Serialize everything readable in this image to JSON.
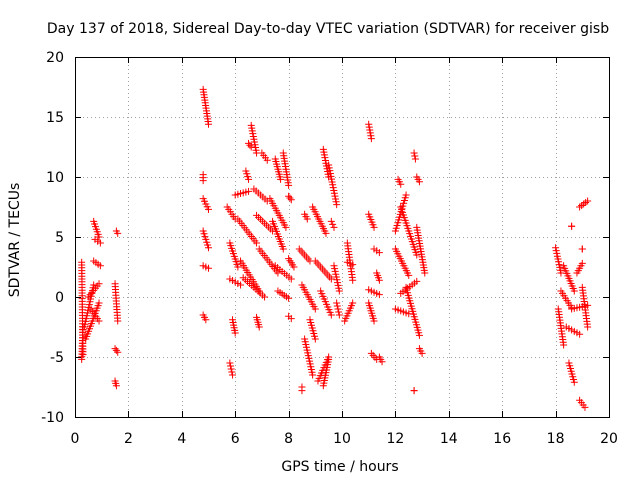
{
  "chart_data": {
    "type": "scatter",
    "title": "Day 137 of 2018, Sidereal Day-to-day VTEC variation (SDTVAR) for receiver gisb",
    "xlabel": "GPS time / hours",
    "ylabel": "SDTVAR / TECUs",
    "xlim": [
      0,
      20
    ],
    "ylim": [
      -10,
      20
    ],
    "xticks": [
      0,
      2,
      4,
      6,
      8,
      10,
      12,
      14,
      16,
      18,
      20
    ],
    "yticks": [
      -10,
      -5,
      0,
      5,
      10,
      15,
      20
    ],
    "xtick_labels": [
      "0",
      "2",
      "4",
      "6",
      "8",
      "10",
      "12",
      "14",
      "16",
      "18",
      "20"
    ],
    "ytick_labels": [
      "-10",
      "-5",
      "0",
      "5",
      "10",
      "15",
      "20"
    ],
    "grid": true,
    "marker": "+",
    "marker_color": "#ff0000",
    "series": [
      {
        "name": "SDTVAR",
        "segments": [
          [
            0.25,
            2.9,
            0.3,
            -4.8
          ],
          [
            0.25,
            -5.2,
            0.3,
            -2.5
          ],
          [
            0.35,
            -2.5,
            0.7,
            1.0
          ],
          [
            0.4,
            -3.5,
            0.9,
            -0.5
          ],
          [
            0.5,
            0.0,
            0.9,
            1.1
          ],
          [
            0.6,
            -1.0,
            0.9,
            -2.0
          ],
          [
            0.7,
            6.3,
            0.9,
            5.0
          ],
          [
            0.7,
            3.0,
            0.95,
            2.6
          ],
          [
            0.75,
            4.8,
            0.95,
            4.5
          ],
          [
            1.5,
            1.1,
            1.6,
            -2.0
          ],
          [
            1.55,
            5.5,
            1.6,
            5.3
          ],
          [
            1.5,
            -4.3,
            1.6,
            -4.6
          ],
          [
            1.5,
            -7.0,
            1.55,
            -7.4
          ],
          [
            4.8,
            17.3,
            5.0,
            14.4
          ],
          [
            4.8,
            10.2,
            4.8,
            9.7
          ],
          [
            4.8,
            8.2,
            5.0,
            7.3
          ],
          [
            4.8,
            5.5,
            5.0,
            4.1
          ],
          [
            4.8,
            2.6,
            5.0,
            2.4
          ],
          [
            4.8,
            -1.5,
            4.9,
            -1.9
          ],
          [
            5.7,
            7.5,
            6.0,
            6.5
          ],
          [
            5.8,
            4.5,
            6.1,
            2.5
          ],
          [
            5.8,
            1.5,
            6.2,
            1.0
          ],
          [
            5.8,
            -5.5,
            5.9,
            -6.5
          ],
          [
            5.9,
            -1.9,
            6.0,
            -3.0
          ],
          [
            6.0,
            8.5,
            6.5,
            8.8
          ],
          [
            6.1,
            6.5,
            6.8,
            4.5
          ],
          [
            6.2,
            3.0,
            6.9,
            0.5
          ],
          [
            6.3,
            1.6,
            7.1,
            0.0
          ],
          [
            6.4,
            10.5,
            6.5,
            9.8
          ],
          [
            6.5,
            12.8,
            6.6,
            12.5
          ],
          [
            6.6,
            14.3,
            6.8,
            12.0
          ],
          [
            6.7,
            9.0,
            7.2,
            8.0
          ],
          [
            6.8,
            6.8,
            7.4,
            5.5
          ],
          [
            6.9,
            4.0,
            7.6,
            2.0
          ],
          [
            6.8,
            -1.7,
            6.9,
            -2.5
          ],
          [
            7.0,
            12.0,
            7.2,
            11.4
          ],
          [
            7.3,
            8.2,
            7.9,
            5.8
          ],
          [
            7.4,
            6.3,
            7.8,
            4.0
          ],
          [
            7.5,
            2.6,
            8.1,
            1.5
          ],
          [
            7.6,
            0.5,
            8.0,
            -0.1
          ],
          [
            7.5,
            11.5,
            7.7,
            9.8
          ],
          [
            7.8,
            12.0,
            8.0,
            9.3
          ],
          [
            8.0,
            8.4,
            8.1,
            8.1
          ],
          [
            8.0,
            3.2,
            8.2,
            2.5
          ],
          [
            8.0,
            -1.6,
            8.1,
            -1.8
          ],
          [
            8.4,
            4.0,
            8.8,
            3.0
          ],
          [
            8.6,
            6.9,
            8.7,
            6.5
          ],
          [
            8.5,
            1.0,
            9.0,
            -1.0
          ],
          [
            8.6,
            -3.5,
            8.9,
            -6.5
          ],
          [
            8.8,
            -1.9,
            9.0,
            -3.5
          ],
          [
            8.5,
            -7.5,
            8.5,
            -7.8
          ],
          [
            8.9,
            7.5,
            9.4,
            5.3
          ],
          [
            9.0,
            3.0,
            9.6,
            1.5
          ],
          [
            9.2,
            0.5,
            9.6,
            -1.5
          ],
          [
            9.1,
            -7.0,
            9.5,
            -5.0
          ],
          [
            9.3,
            12.3,
            9.5,
            10.0
          ],
          [
            9.5,
            11.0,
            9.8,
            7.7
          ],
          [
            9.3,
            -7.4,
            9.5,
            -5.2
          ],
          [
            9.6,
            6.3,
            9.7,
            5.8
          ],
          [
            9.7,
            2.6,
            9.9,
            0.5
          ],
          [
            9.8,
            -0.5,
            9.9,
            -1.5
          ],
          [
            10.2,
            4.5,
            10.4,
            1.4
          ],
          [
            10.2,
            2.9,
            10.4,
            2.7
          ],
          [
            10.1,
            -2.0,
            10.4,
            -0.5
          ],
          [
            11.0,
            14.4,
            11.1,
            13.2
          ],
          [
            11.0,
            6.9,
            11.2,
            5.8
          ],
          [
            11.0,
            0.6,
            11.4,
            0.2
          ],
          [
            11.0,
            -0.5,
            11.2,
            -2.0
          ],
          [
            11.1,
            -4.7,
            11.3,
            -5.2
          ],
          [
            11.2,
            4.0,
            11.4,
            3.7
          ],
          [
            11.3,
            2.0,
            11.4,
            1.4
          ],
          [
            11.4,
            -5.0,
            11.5,
            -5.4
          ],
          [
            12.0,
            5.5,
            12.4,
            8.5
          ],
          [
            12.0,
            4.0,
            12.5,
            1.8
          ],
          [
            12.2,
            0.3,
            12.8,
            1.3
          ],
          [
            12.0,
            -1.0,
            12.5,
            -1.4
          ],
          [
            12.2,
            7.5,
            12.8,
            3.5
          ],
          [
            12.4,
            0.8,
            12.9,
            -3.2
          ],
          [
            12.7,
            12.0,
            12.75,
            11.5
          ],
          [
            12.8,
            10.0,
            12.9,
            9.6
          ],
          [
            12.8,
            5.8,
            13.1,
            2.0
          ],
          [
            12.9,
            -4.3,
            13.0,
            -4.7
          ],
          [
            12.7,
            -7.8,
            12.7,
            -7.8
          ],
          [
            12.1,
            9.8,
            12.2,
            9.4
          ],
          [
            18.0,
            4.1,
            18.2,
            2.0
          ],
          [
            18.1,
            -1.0,
            18.3,
            -4.0
          ],
          [
            18.2,
            0.5,
            18.6,
            -0.9
          ],
          [
            18.3,
            2.6,
            18.7,
            0.5
          ],
          [
            18.4,
            -2.5,
            18.9,
            -3.1
          ],
          [
            18.5,
            -5.5,
            18.7,
            -7.1
          ],
          [
            18.6,
            -1.0,
            19.2,
            -0.7
          ],
          [
            18.8,
            2.0,
            19.0,
            2.8
          ],
          [
            18.9,
            -8.6,
            19.1,
            -9.2
          ],
          [
            18.9,
            7.5,
            19.2,
            8.0
          ],
          [
            19.0,
            0.8,
            19.2,
            -2.5
          ],
          [
            18.6,
            5.9,
            18.6,
            5.9
          ],
          [
            19.0,
            4.0,
            19.0,
            4.0
          ]
        ]
      }
    ]
  }
}
